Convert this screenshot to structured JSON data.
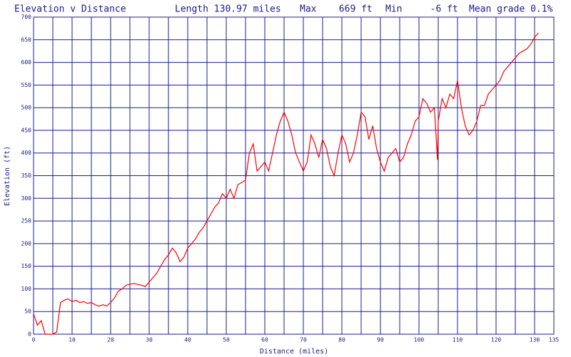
{
  "chart_data": {
    "type": "line",
    "header": [
      "Elevation v Distance",
      "Length 130.97 miles",
      "Max    669 ft",
      "Min     -6 ft",
      "Mean grade 0.1%"
    ],
    "xlabel": "Distance (miles)",
    "ylabel": "Elevation (ft)",
    "xlim": [
      0,
      135
    ],
    "ylim": [
      0,
      700
    ],
    "xticks": [
      0,
      10,
      20,
      30,
      40,
      50,
      60,
      70,
      80,
      90,
      100,
      110,
      120,
      130,
      135
    ],
    "xminor_ticks": [
      5,
      15,
      25,
      35,
      45,
      55,
      65,
      75,
      85,
      95,
      105,
      115,
      125
    ],
    "yticks": [
      0,
      50,
      100,
      150,
      200,
      250,
      300,
      350,
      400,
      450,
      500,
      550,
      600,
      650,
      700
    ],
    "grid": true,
    "grid_color": "#1c1c8c",
    "series": [
      {
        "name": "Elevation",
        "color": "#ff0000",
        "x": [
          0,
          1,
          2,
          3,
          4,
          5,
          6,
          7,
          8,
          9,
          10,
          11,
          12,
          13,
          14,
          15,
          16,
          17,
          18,
          19,
          20,
          21,
          22,
          23,
          24,
          25,
          26,
          27,
          28,
          29,
          30,
          31,
          32,
          33,
          34,
          35,
          36,
          37,
          38,
          39,
          40,
          41,
          42,
          43,
          44,
          45,
          46,
          47,
          48,
          49,
          50,
          51,
          52,
          53,
          54,
          55,
          56,
          57,
          58,
          59,
          60,
          61,
          62,
          63,
          64,
          65,
          66,
          67,
          68,
          69,
          70,
          71,
          72,
          73,
          74,
          75,
          76,
          77,
          78,
          79,
          80,
          81,
          82,
          83,
          84,
          85,
          86,
          87,
          88,
          89,
          90,
          91,
          92,
          93,
          94,
          95,
          96,
          97,
          98,
          99,
          100,
          101,
          102,
          103,
          104,
          104.8,
          105,
          106,
          107,
          108,
          109,
          110,
          111,
          112,
          113,
          114,
          115,
          116,
          117,
          118,
          119,
          120,
          121,
          122,
          123,
          124,
          125,
          126,
          127,
          128,
          129,
          130,
          130.97
        ],
        "values": [
          45,
          20,
          30,
          0,
          0,
          0,
          5,
          70,
          75,
          78,
          72,
          75,
          70,
          72,
          68,
          70,
          65,
          62,
          65,
          62,
          70,
          80,
          95,
          100,
          108,
          110,
          112,
          110,
          108,
          105,
          115,
          125,
          135,
          150,
          165,
          175,
          190,
          180,
          160,
          170,
          190,
          200,
          210,
          225,
          235,
          250,
          265,
          280,
          290,
          310,
          300,
          320,
          300,
          330,
          335,
          340,
          400,
          420,
          360,
          370,
          380,
          360,
          400,
          440,
          470,
          490,
          470,
          440,
          400,
          380,
          360,
          380,
          440,
          420,
          390,
          430,
          410,
          370,
          350,
          400,
          440,
          420,
          380,
          400,
          440,
          490,
          480,
          430,
          460,
          410,
          380,
          360,
          390,
          400,
          410,
          380,
          390,
          420,
          440,
          470,
          480,
          520,
          510,
          490,
          500,
          385,
          470,
          520,
          500,
          530,
          520,
          560,
          500,
          460,
          440,
          450,
          470,
          505,
          505,
          530,
          540,
          550,
          560,
          580,
          590,
          600,
          610,
          620,
          625,
          630,
          640,
          655,
          665
        ]
      }
    ]
  }
}
